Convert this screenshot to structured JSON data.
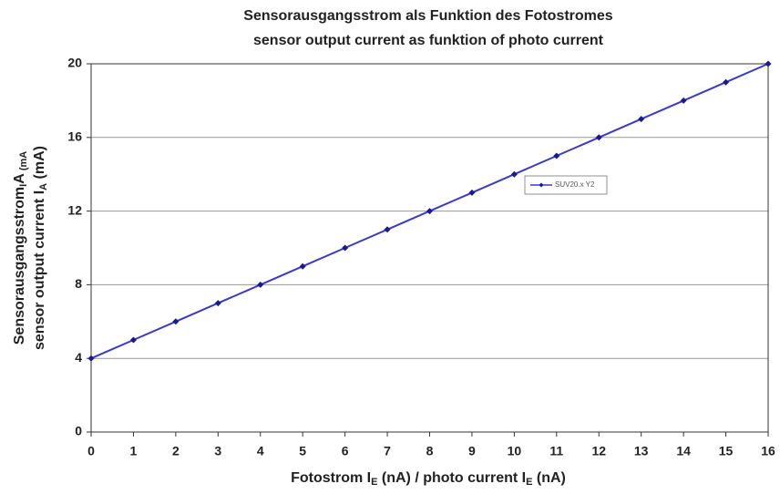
{
  "chart_data": {
    "type": "line",
    "title": "Sensorausgangsstrom als Funktion des Fotostromes",
    "subtitle": "sensor output current as funktion of photo current",
    "xlabel": [
      "Fotostrom  I",
      "E",
      " (nA) / photo current I",
      "E",
      " (nA)"
    ],
    "ylabel": [
      [
        "Sensorausgangsstrom",
        "I",
        "A",
        " (mA"
      ],
      [
        "sensor output current I",
        "A",
        " (mA)"
      ]
    ],
    "x": [
      0,
      1,
      2,
      3,
      4,
      5,
      6,
      7,
      8,
      9,
      10,
      11,
      12,
      13,
      14,
      15,
      16
    ],
    "series": [
      {
        "name": "SUV20.x Y2",
        "color": "#3a3acc",
        "values": [
          4,
          5,
          6,
          7,
          8,
          9,
          10,
          11,
          12,
          13,
          14,
          15,
          16,
          17,
          18,
          19,
          20
        ]
      }
    ],
    "xlim": [
      0,
      16
    ],
    "xticks": [
      0,
      1,
      2,
      3,
      4,
      5,
      6,
      7,
      8,
      9,
      10,
      11,
      12,
      13,
      14,
      15,
      16
    ],
    "ylim": [
      0,
      20
    ],
    "yticks": [
      0,
      4,
      8,
      12,
      16,
      20
    ],
    "grid": true
  }
}
